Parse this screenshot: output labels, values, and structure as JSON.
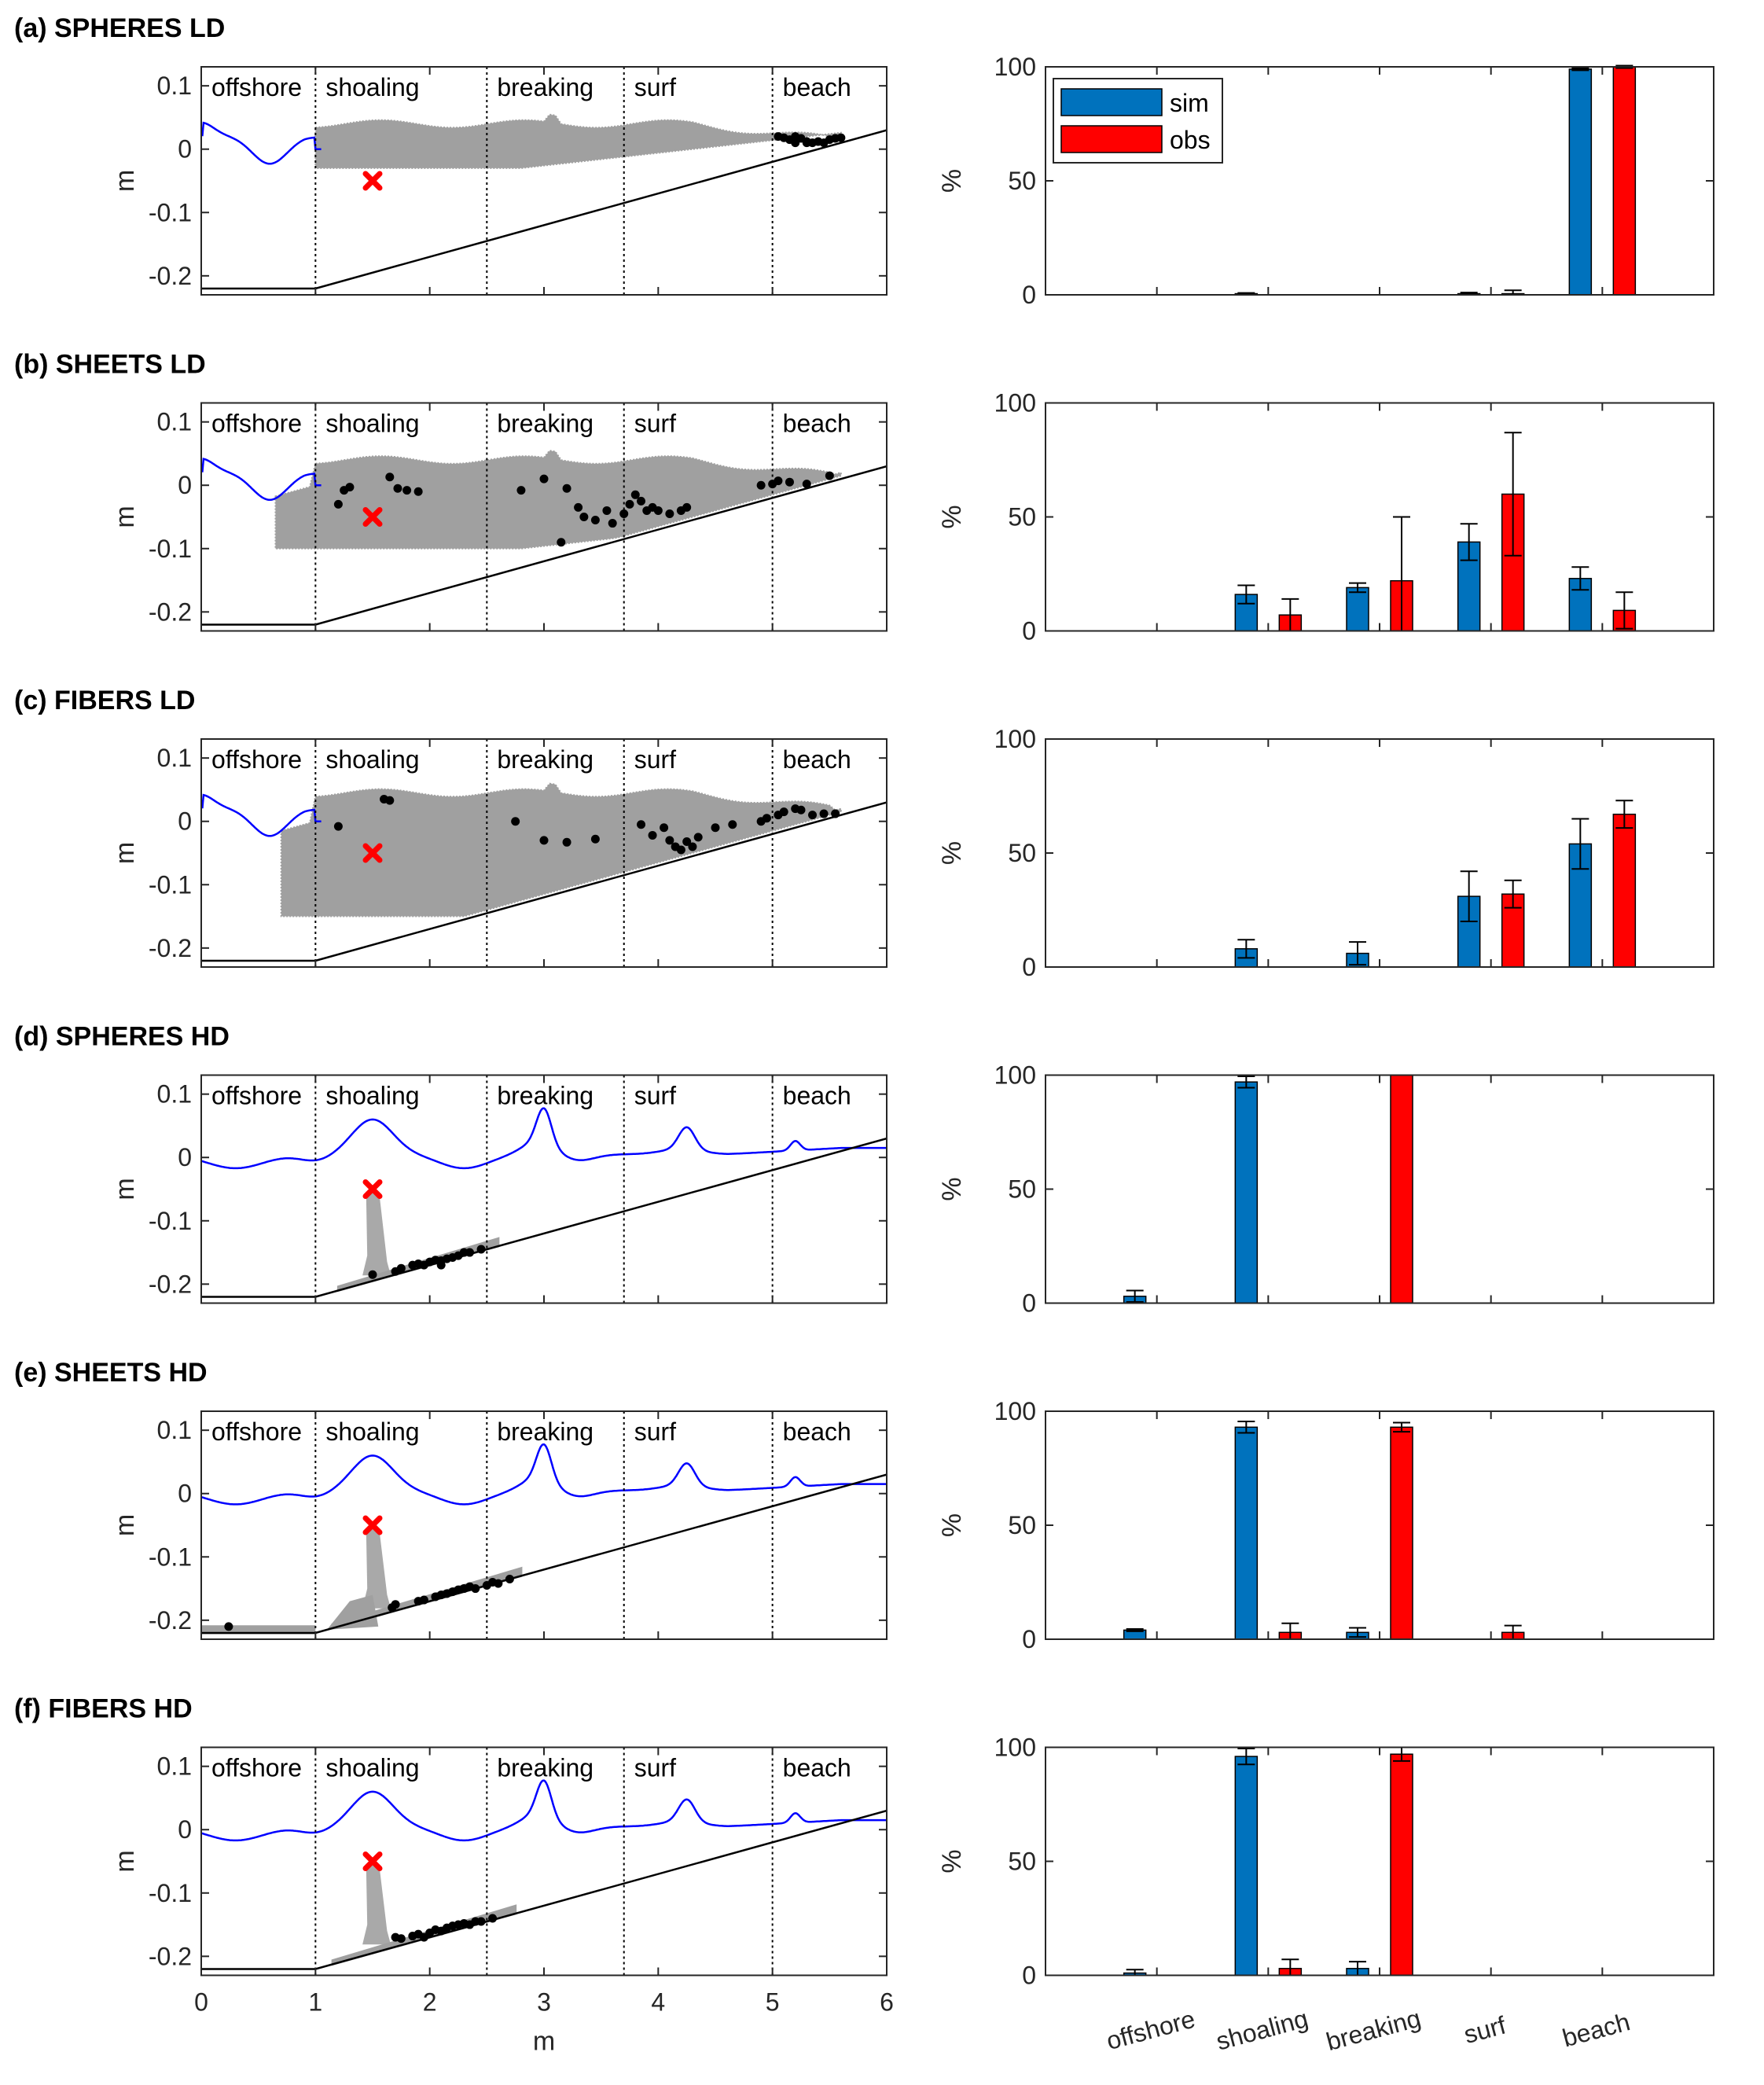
{
  "figure": {
    "x_axis_label": "m",
    "y_axis_label_left": "m",
    "y_axis_label_right": "%"
  },
  "colors": {
    "sim": "#0072BD",
    "obs": "#FF0000",
    "particle_cloud": "#A0A0A0",
    "water_surface": "#0000FF",
    "bathymetry": "#000000",
    "release_marker": "#FF0000",
    "deposition_points": "#000000"
  },
  "zones": [
    "offshore",
    "shoaling",
    "breaking",
    "surf",
    "beach"
  ],
  "legend": {
    "sim": "sim",
    "obs": "obs",
    "placement": "top-left"
  },
  "profile_axes": {
    "xlim": [
      0,
      6
    ],
    "ylim": [
      -0.23,
      0.13
    ],
    "xticks": [
      "0",
      "1",
      "2",
      "3",
      "4",
      "5",
      "6"
    ],
    "yticks": [
      "0.1",
      "0",
      "-0.1",
      "-0.2"
    ],
    "ytick_values": [
      0.1,
      0,
      -0.1,
      -0.2
    ],
    "zone_boundaries": [
      1,
      2.5,
      3.7,
      5
    ],
    "bathymetry": [
      [
        0,
        -0.22
      ],
      [
        1,
        -0.22
      ],
      [
        6,
        0.03
      ]
    ],
    "release_point": [
      1.5,
      -0.05
    ]
  },
  "bar_axes": {
    "ylim": [
      0,
      100
    ],
    "yticks": [
      "100",
      "50",
      "0"
    ],
    "ytick_values": [
      100,
      50,
      0
    ]
  },
  "chart_data": [
    {
      "type": "bar",
      "title": "(a) SPHERES LD",
      "categories": [
        "offshore",
        "shoaling",
        "breaking",
        "surf",
        "beach"
      ],
      "series": [
        {
          "name": "sim",
          "values": [
            0,
            0.5,
            0,
            0.5,
            99
          ],
          "errors": [
            0,
            0.3,
            0,
            0.5,
            0.5
          ]
        },
        {
          "name": "obs",
          "values": [
            0,
            0,
            0,
            0.5,
            100
          ],
          "errors": [
            0,
            0,
            0,
            1.5,
            0.5
          ]
        }
      ],
      "profile": {
        "surface": "ld",
        "cloud": {
          "type": "ld",
          "x": [
            1,
            5.6
          ],
          "top": 0.04,
          "bottom": -0.03
        },
        "deposits": [
          [
            5.05,
            0.02
          ],
          [
            5.1,
            0.018
          ],
          [
            5.15,
            0.015
          ],
          [
            5.2,
            0.02
          ],
          [
            5.25,
            0.017
          ],
          [
            5.3,
            0.012
          ],
          [
            5.35,
            0.01
          ],
          [
            5.4,
            0.012
          ],
          [
            5.45,
            0.01
          ],
          [
            5.5,
            0.015
          ],
          [
            5.55,
            0.017
          ],
          [
            5.6,
            0.018
          ],
          [
            5.2,
            0.01
          ],
          [
            5.3,
            0.01
          ]
        ]
      }
    },
    {
      "type": "bar",
      "title": "(b) SHEETS LD",
      "categories": [
        "offshore",
        "shoaling",
        "breaking",
        "surf",
        "beach"
      ],
      "series": [
        {
          "name": "sim",
          "values": [
            0,
            16,
            19,
            39,
            23
          ],
          "errors": [
            0,
            4,
            2,
            8,
            5
          ]
        },
        {
          "name": "obs",
          "values": [
            0,
            7,
            22,
            60,
            9
          ],
          "errors": [
            0,
            7,
            28,
            27,
            8
          ]
        }
      ],
      "profile": {
        "surface": "ld",
        "cloud": {
          "type": "ld",
          "x": [
            0.65,
            5.6
          ],
          "top": 0.04,
          "bottom": -0.1
        },
        "deposits": [
          [
            1.2,
            -0.03
          ],
          [
            1.25,
            -0.008
          ],
          [
            1.3,
            -0.003
          ],
          [
            1.65,
            0.013
          ],
          [
            1.72,
            -0.005
          ],
          [
            1.8,
            -0.008
          ],
          [
            1.9,
            -0.01
          ],
          [
            2.8,
            -0.008
          ],
          [
            3.0,
            0.01
          ],
          [
            3.2,
            -0.005
          ],
          [
            3.3,
            -0.035
          ],
          [
            3.35,
            -0.05
          ],
          [
            3.45,
            -0.055
          ],
          [
            3.55,
            -0.04
          ],
          [
            3.6,
            -0.06
          ],
          [
            3.7,
            -0.045
          ],
          [
            3.75,
            -0.03
          ],
          [
            3.8,
            -0.015
          ],
          [
            3.85,
            -0.025
          ],
          [
            3.9,
            -0.04
          ],
          [
            3.95,
            -0.035
          ],
          [
            4.0,
            -0.04
          ],
          [
            4.1,
            -0.045
          ],
          [
            4.2,
            -0.04
          ],
          [
            4.25,
            -0.035
          ],
          [
            3.15,
            -0.09
          ],
          [
            4.9,
            0.0
          ],
          [
            5.0,
            0.002
          ],
          [
            5.05,
            0.007
          ],
          [
            5.15,
            0.005
          ],
          [
            5.3,
            0.002
          ],
          [
            5.5,
            0.015
          ]
        ]
      }
    },
    {
      "type": "bar",
      "title": "(c) FIBERS LD",
      "categories": [
        "offshore",
        "shoaling",
        "breaking",
        "surf",
        "beach"
      ],
      "series": [
        {
          "name": "sim",
          "values": [
            0,
            8,
            6,
            31,
            54
          ],
          "errors": [
            0,
            4,
            5,
            11,
            11
          ]
        },
        {
          "name": "obs",
          "values": [
            0,
            0,
            0,
            32,
            67
          ],
          "errors": [
            0,
            0,
            0,
            6,
            6
          ]
        }
      ],
      "profile": {
        "surface": "ld",
        "cloud": {
          "type": "ld",
          "x": [
            0.7,
            5.6
          ],
          "top": 0.045,
          "bottom": -0.15
        },
        "deposits": [
          [
            1.2,
            -0.008
          ],
          [
            1.6,
            0.035
          ],
          [
            1.65,
            0.033
          ],
          [
            2.75,
            0.0
          ],
          [
            3.0,
            -0.03
          ],
          [
            3.2,
            -0.033
          ],
          [
            3.45,
            -0.028
          ],
          [
            3.85,
            -0.005
          ],
          [
            3.95,
            -0.022
          ],
          [
            4.05,
            -0.01
          ],
          [
            4.1,
            -0.03
          ],
          [
            4.15,
            -0.04
          ],
          [
            4.2,
            -0.045
          ],
          [
            4.25,
            -0.032
          ],
          [
            4.3,
            -0.04
          ],
          [
            4.35,
            -0.025
          ],
          [
            4.5,
            -0.01
          ],
          [
            4.65,
            -0.005
          ],
          [
            4.9,
            0.0
          ],
          [
            4.95,
            0.005
          ],
          [
            5.05,
            0.01
          ],
          [
            5.1,
            0.015
          ],
          [
            5.2,
            0.02
          ],
          [
            5.25,
            0.018
          ],
          [
            5.35,
            0.01
          ],
          [
            5.45,
            0.012
          ],
          [
            5.55,
            0.012
          ]
        ]
      }
    },
    {
      "type": "bar",
      "title": "(d) SPHERES HD",
      "categories": [
        "offshore",
        "shoaling",
        "breaking",
        "surf",
        "beach"
      ],
      "series": [
        {
          "name": "sim",
          "values": [
            3,
            97,
            0,
            0,
            0
          ],
          "errors": [
            2.5,
            2.5,
            0,
            0,
            0
          ]
        },
        {
          "name": "obs",
          "values": [
            0,
            0,
            100,
            0,
            0
          ],
          "errors": [
            0,
            0,
            0,
            0,
            0
          ]
        }
      ],
      "profile": {
        "surface": "hd",
        "cloud": {
          "type": "hd",
          "x": [
            1.2,
            2.6
          ],
          "plume_top": -0.055,
          "plume_bottom": -0.185,
          "plume_center": 1.5
        },
        "deposits": [
          [
            1.5,
            -0.185
          ],
          [
            1.7,
            -0.18
          ],
          [
            1.75,
            -0.175
          ],
          [
            1.85,
            -0.17
          ],
          [
            1.9,
            -0.168
          ],
          [
            1.95,
            -0.17
          ],
          [
            2.0,
            -0.165
          ],
          [
            2.05,
            -0.162
          ],
          [
            2.1,
            -0.163
          ],
          [
            2.15,
            -0.16
          ],
          [
            2.2,
            -0.158
          ],
          [
            2.25,
            -0.155
          ],
          [
            2.3,
            -0.15
          ],
          [
            2.35,
            -0.15
          ],
          [
            2.45,
            -0.145
          ],
          [
            2.1,
            -0.17
          ]
        ]
      }
    },
    {
      "type": "bar",
      "title": "(e) SHEETS HD",
      "categories": [
        "offshore",
        "shoaling",
        "breaking",
        "surf",
        "beach"
      ],
      "series": [
        {
          "name": "sim",
          "values": [
            4,
            93,
            3,
            0,
            0
          ],
          "errors": [
            0.5,
            2.5,
            2,
            0,
            0
          ]
        },
        {
          "name": "obs",
          "values": [
            0,
            3,
            93,
            3,
            0
          ],
          "errors": [
            0,
            4,
            2,
            3,
            0
          ]
        }
      ],
      "profile": {
        "surface": "hd",
        "cloud": {
          "type": "hd",
          "x": [
            0.0,
            2.8
          ],
          "plume_top": -0.055,
          "plume_bottom": -0.18,
          "plume_center": 1.5,
          "flat_floor": true
        },
        "deposits": [
          [
            0.24,
            -0.21
          ],
          [
            1.67,
            -0.18
          ],
          [
            1.7,
            -0.175
          ],
          [
            1.9,
            -0.17
          ],
          [
            1.95,
            -0.168
          ],
          [
            2.05,
            -0.163
          ],
          [
            2.1,
            -0.16
          ],
          [
            2.15,
            -0.158
          ],
          [
            2.2,
            -0.155
          ],
          [
            2.25,
            -0.152
          ],
          [
            2.3,
            -0.15
          ],
          [
            2.35,
            -0.147
          ],
          [
            2.4,
            -0.15
          ],
          [
            2.5,
            -0.145
          ],
          [
            2.55,
            -0.14
          ],
          [
            2.6,
            -0.142
          ],
          [
            2.7,
            -0.135
          ]
        ]
      }
    },
    {
      "type": "bar",
      "title": "(f) FIBERS HD",
      "categories": [
        "offshore",
        "shoaling",
        "breaking",
        "surf",
        "beach"
      ],
      "series": [
        {
          "name": "sim",
          "values": [
            1,
            96,
            3,
            0,
            0
          ],
          "errors": [
            1.5,
            3.5,
            3,
            0,
            0
          ]
        },
        {
          "name": "obs",
          "values": [
            0,
            3,
            97,
            0,
            0
          ],
          "errors": [
            0,
            4,
            3,
            0,
            0
          ]
        }
      ],
      "profile": {
        "surface": "hd",
        "cloud": {
          "type": "hd",
          "x": [
            1.15,
            2.75
          ],
          "plume_top": -0.055,
          "plume_bottom": -0.18,
          "plume_center": 1.5
        },
        "deposits": [
          [
            1.7,
            -0.17
          ],
          [
            1.75,
            -0.172
          ],
          [
            1.85,
            -0.168
          ],
          [
            1.9,
            -0.165
          ],
          [
            1.95,
            -0.17
          ],
          [
            2.0,
            -0.163
          ],
          [
            2.05,
            -0.158
          ],
          [
            2.1,
            -0.16
          ],
          [
            2.15,
            -0.155
          ],
          [
            2.2,
            -0.152
          ],
          [
            2.25,
            -0.15
          ],
          [
            2.3,
            -0.148
          ],
          [
            2.35,
            -0.15
          ],
          [
            2.4,
            -0.145
          ],
          [
            2.45,
            -0.145
          ],
          [
            2.55,
            -0.14
          ]
        ]
      }
    }
  ]
}
